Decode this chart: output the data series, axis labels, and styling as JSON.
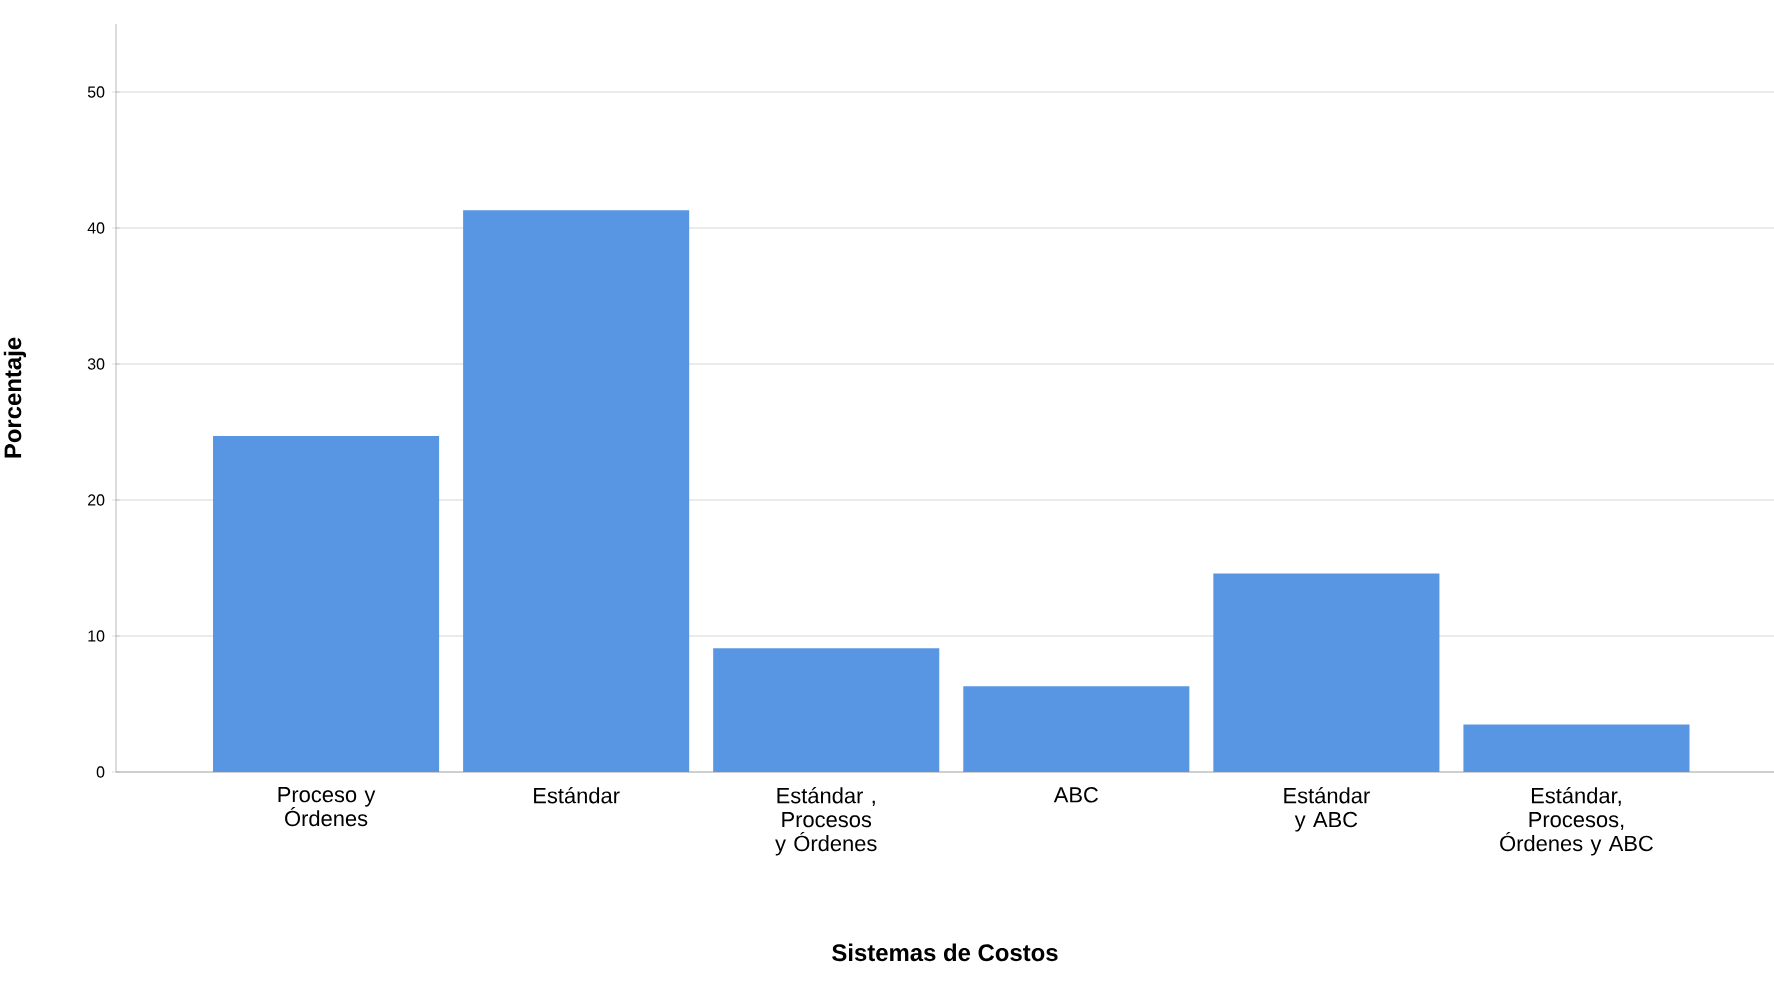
{
  "chart_data": {
    "type": "bar",
    "xlabel": "Sistemas de Costos",
    "ylabel": "Porcentaje",
    "categories": [
      "Proceso y Órdenes",
      "Estándar",
      "Estándar , Procesos y Órdenes",
      "ABC",
      "Estándar y ABC",
      "Estándar, Procesos, Órdenes y ABC"
    ],
    "values": [
      24.7,
      41.3,
      9.1,
      6.3,
      14.6,
      3.5
    ],
    "color": "#5896e3",
    "ylim": [
      0,
      55
    ],
    "yticks": [
      0,
      10,
      20,
      30,
      40,
      50
    ],
    "grid": "y"
  }
}
